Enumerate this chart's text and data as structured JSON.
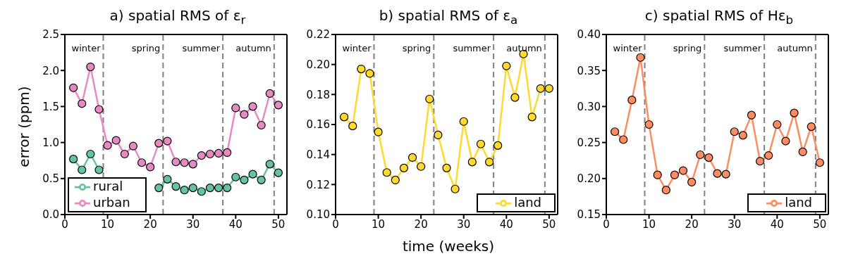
{
  "chart_data": [
    {
      "type": "line",
      "title": "a) spatial RMS of ε$_{r}$",
      "ylabel": "error (ppm)",
      "x": [
        2,
        4,
        6,
        8,
        10,
        12,
        14,
        16,
        18,
        20,
        22,
        24,
        26,
        28,
        30,
        32,
        34,
        36,
        38,
        40,
        42,
        44,
        46,
        48,
        50
      ],
      "series": [
        {
          "name": "urban",
          "color": "#e78ac3",
          "values": [
            1.76,
            1.54,
            2.05,
            1.46,
            0.96,
            1.03,
            0.84,
            0.95,
            0.72,
            0.66,
            0.99,
            1.02,
            0.73,
            0.72,
            0.7,
            0.82,
            0.84,
            0.85,
            0.86,
            1.48,
            1.39,
            1.5,
            1.24,
            1.68,
            1.52
          ]
        },
        {
          "name": "rural",
          "color": "#66c2a5",
          "values": [
            0.77,
            0.62,
            0.84,
            0.62,
            null,
            null,
            null,
            null,
            null,
            null,
            0.37,
            0.49,
            0.39,
            0.34,
            0.37,
            0.32,
            0.37,
            0.37,
            0.37,
            0.52,
            0.48,
            0.56,
            0.48,
            0.7,
            0.58
          ]
        }
      ],
      "xlim": [
        0,
        52
      ],
      "xticks": [
        0,
        10,
        20,
        30,
        40,
        50
      ],
      "ylim": [
        0,
        2.5
      ],
      "yticks": [
        {
          "value": 0,
          "label": "0.0"
        },
        {
          "value": 0.5,
          "label": "0.5"
        },
        {
          "value": 1,
          "label": "1.0"
        },
        {
          "value": 1.5,
          "label": "1.5"
        },
        {
          "value": 2,
          "label": "2.0"
        },
        {
          "value": 2.5,
          "label": "2.5"
        }
      ],
      "ref_lines": [
        {
          "axis": "x",
          "value": 9,
          "color": "#808080",
          "line_style": "dashed"
        },
        {
          "axis": "x",
          "value": 23,
          "color": "#808080",
          "line_style": "dashed"
        },
        {
          "axis": "x",
          "value": 37,
          "color": "#808080",
          "line_style": "dashed"
        },
        {
          "axis": "x",
          "value": 49,
          "color": "#808080",
          "line_style": "dashed"
        }
      ],
      "annotations": [
        "winter",
        "spring",
        "summer",
        "autumn"
      ],
      "marker": "circle",
      "line_style": "solid",
      "grid": false,
      "legend": "bottom left"
    },
    {
      "type": "line",
      "title": "b) spatial RMS of ε$_{a}$",
      "xlabel": "time (weeks)",
      "x": [
        2,
        4,
        6,
        8,
        10,
        12,
        14,
        16,
        18,
        20,
        22,
        24,
        26,
        28,
        30,
        32,
        34,
        36,
        38,
        40,
        42,
        44,
        46,
        48,
        50
      ],
      "series": [
        {
          "name": "land",
          "color": "#ffd92f",
          "values": [
            0.165,
            0.159,
            0.197,
            0.194,
            0.155,
            0.128,
            0.123,
            0.131,
            0.138,
            0.132,
            0.177,
            0.153,
            0.131,
            0.117,
            0.162,
            0.135,
            0.147,
            0.135,
            0.146,
            0.199,
            0.178,
            0.207,
            0.165,
            0.184,
            0.184
          ]
        }
      ],
      "xlim": [
        0,
        52
      ],
      "xticks": [
        0,
        10,
        20,
        30,
        40,
        50
      ],
      "ylim": [
        0.1,
        0.22
      ],
      "yticks": [
        {
          "value": 0.1,
          "label": "0.10"
        },
        {
          "value": 0.12,
          "label": "0.12"
        },
        {
          "value": 0.14,
          "label": "0.14"
        },
        {
          "value": 0.16,
          "label": "0.16"
        },
        {
          "value": 0.18,
          "label": "0.18"
        },
        {
          "value": 0.2,
          "label": "0.20"
        },
        {
          "value": 0.22,
          "label": "0.22"
        }
      ],
      "ref_lines": [
        {
          "axis": "x",
          "value": 9,
          "color": "#808080",
          "line_style": "dashed"
        },
        {
          "axis": "x",
          "value": 23,
          "color": "#808080",
          "line_style": "dashed"
        },
        {
          "axis": "x",
          "value": 37,
          "color": "#808080",
          "line_style": "dashed"
        },
        {
          "axis": "x",
          "value": 49,
          "color": "#808080",
          "line_style": "dashed"
        }
      ],
      "annotations": [
        "winter",
        "spring",
        "summer",
        "autumn"
      ],
      "marker": "circle",
      "line_style": "solid",
      "grid": false,
      "legend": "bottom right"
    },
    {
      "type": "line",
      "title": "c) spatial RMS of Hε$_{b}$",
      "x": [
        2,
        4,
        6,
        8,
        10,
        12,
        14,
        16,
        18,
        20,
        22,
        24,
        26,
        28,
        30,
        32,
        34,
        36,
        38,
        40,
        42,
        44,
        46,
        48,
        50
      ],
      "series": [
        {
          "name": "land",
          "color": "#fc8d62",
          "values": [
            0.265,
            0.254,
            0.309,
            0.368,
            0.275,
            0.205,
            0.184,
            0.205,
            0.211,
            0.195,
            0.233,
            0.229,
            0.207,
            0.206,
            0.265,
            0.26,
            0.288,
            0.224,
            0.232,
            0.275,
            0.252,
            0.291,
            0.237,
            0.272,
            0.222
          ]
        }
      ],
      "xlim": [
        0,
        52
      ],
      "xticks": [
        0,
        10,
        20,
        30,
        40,
        50
      ],
      "ylim": [
        0.15,
        0.4
      ],
      "yticks": [
        {
          "value": 0.15,
          "label": "0.15"
        },
        {
          "value": 0.2,
          "label": "0.20"
        },
        {
          "value": 0.25,
          "label": "0.25"
        },
        {
          "value": 0.3,
          "label": "0.30"
        },
        {
          "value": 0.35,
          "label": "0.35"
        },
        {
          "value": 0.4,
          "label": "0.40"
        }
      ],
      "ref_lines": [
        {
          "axis": "x",
          "value": 9,
          "color": "#808080",
          "line_style": "dashed"
        },
        {
          "axis": "x",
          "value": 23,
          "color": "#808080",
          "line_style": "dashed"
        },
        {
          "axis": "x",
          "value": 37,
          "color": "#808080",
          "line_style": "dashed"
        },
        {
          "axis": "x",
          "value": 49,
          "color": "#808080",
          "line_style": "dashed"
        }
      ],
      "annotations": [
        "winter",
        "spring",
        "summer",
        "autumn"
      ],
      "marker": "circle",
      "line_style": "solid",
      "grid": false,
      "legend": "bottom right"
    }
  ]
}
